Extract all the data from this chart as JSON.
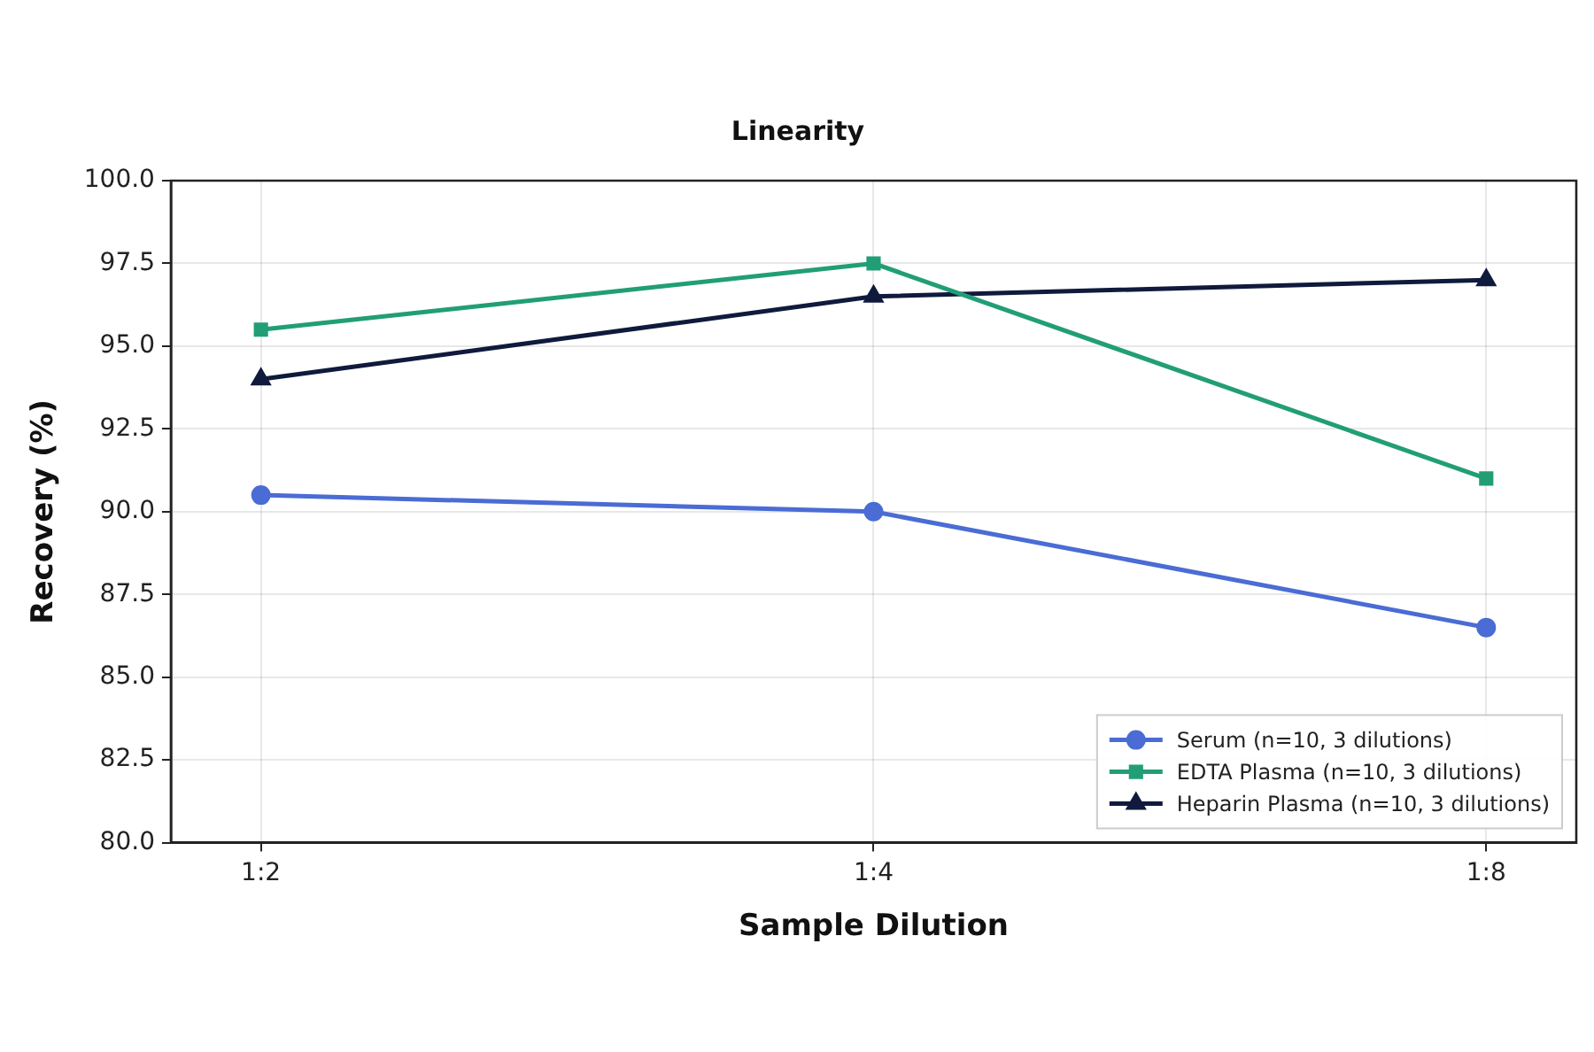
{
  "chart_data": {
    "type": "line",
    "title": "Linearity",
    "xlabel": "Sample Dilution",
    "ylabel": "Recovery (%)",
    "categories": [
      "1:2",
      "1:4",
      "1:8"
    ],
    "series": [
      {
        "name": "Serum (n=10, 3 dilutions)",
        "color": "#4a6cd4",
        "values": [
          90.5,
          90.0,
          86.5
        ],
        "marker": "circle"
      },
      {
        "name": "EDTA Plasma (n=10, 3 dilutions)",
        "color": "#229e76",
        "values": [
          95.5,
          97.5,
          91.0
        ],
        "marker": "square"
      },
      {
        "name": "Heparin Plasma (n=10, 3 dilutions)",
        "color": "#0f1a3c",
        "values": [
          94.0,
          96.5,
          97.0
        ],
        "marker": "triangle"
      }
    ],
    "ylim": [
      80,
      100
    ],
    "yticks": [
      {
        "value": 80,
        "label": "80.0"
      },
      82.5,
      {
        "value": 85,
        "label": "85.0"
      },
      87.5,
      {
        "value": 90,
        "label": "90.0"
      },
      92.5,
      {
        "value": 95,
        "label": "95.0"
      },
      97.5,
      {
        "value": 100,
        "label": "100.0"
      }
    ],
    "grid": true,
    "legend": "bottom right",
    "line_style": "solid"
  }
}
